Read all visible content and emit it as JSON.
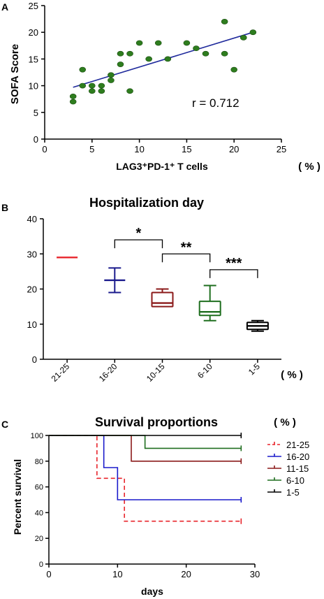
{
  "chart_data": [
    {
      "panel_label": "A",
      "type": "scatter",
      "title": "",
      "xlabel": "LAG3⁺PD-1⁺  T cells",
      "xunit": "( % )",
      "ylabel": "SOFA Score",
      "xlim": [
        0,
        25
      ],
      "ylim": [
        0,
        25
      ],
      "xticks": [
        0,
        5,
        10,
        15,
        20,
        25
      ],
      "yticks": [
        0,
        5,
        10,
        15,
        20,
        25
      ],
      "annotation": "r = 0.712",
      "colors": {
        "points": "#2e7d1e",
        "trend": "#1f2a9c"
      },
      "trend_line": {
        "x": [
          3,
          22
        ],
        "y": [
          9.7,
          20
        ]
      },
      "points": [
        {
          "x": 3,
          "y": 7
        },
        {
          "x": 3,
          "y": 8
        },
        {
          "x": 4,
          "y": 10
        },
        {
          "x": 4,
          "y": 13
        },
        {
          "x": 5,
          "y": 9
        },
        {
          "x": 5,
          "y": 10
        },
        {
          "x": 6,
          "y": 9
        },
        {
          "x": 6,
          "y": 10
        },
        {
          "x": 7,
          "y": 11
        },
        {
          "x": 7,
          "y": 12
        },
        {
          "x": 8,
          "y": 14
        },
        {
          "x": 8,
          "y": 16
        },
        {
          "x": 9,
          "y": 9
        },
        {
          "x": 9,
          "y": 16
        },
        {
          "x": 10,
          "y": 18
        },
        {
          "x": 11,
          "y": 15
        },
        {
          "x": 12,
          "y": 18
        },
        {
          "x": 13,
          "y": 15
        },
        {
          "x": 15,
          "y": 18
        },
        {
          "x": 16,
          "y": 17
        },
        {
          "x": 17,
          "y": 16
        },
        {
          "x": 19,
          "y": 16
        },
        {
          "x": 19,
          "y": 22
        },
        {
          "x": 20,
          "y": 13
        },
        {
          "x": 21,
          "y": 19
        },
        {
          "x": 22,
          "y": 20
        }
      ]
    },
    {
      "panel_label": "B",
      "type": "box",
      "title": "Hospitalization day",
      "xunit": "( % )",
      "ylim": [
        0,
        40
      ],
      "yticks": [
        0,
        10,
        20,
        30,
        40
      ],
      "categories": [
        "21-25",
        "16-20",
        "10-15",
        "6-10",
        "1-5"
      ],
      "colors": [
        "#e8242b",
        "#1a1a8c",
        "#8b1a1a",
        "#1f6e1f",
        "#000000"
      ],
      "boxes": [
        {
          "min": 29,
          "q1": 29,
          "median": 29,
          "q3": 29,
          "max": 29
        },
        {
          "min": 19,
          "q1": 22.5,
          "median": 22.5,
          "q3": 22.5,
          "max": 26
        },
        {
          "min": 15,
          "q1": 15,
          "median": 16,
          "q3": 19,
          "max": 20
        },
        {
          "min": 11,
          "q1": 12.5,
          "median": 13.5,
          "q3": 16.5,
          "max": 21
        },
        {
          "min": 8,
          "q1": 8.5,
          "median": 9.5,
          "q3": 10.5,
          "max": 11
        }
      ],
      "significance": [
        {
          "from": 1,
          "to": 2,
          "label": "*",
          "y": 34
        },
        {
          "from": 2,
          "to": 3,
          "label": "**",
          "y": 30
        },
        {
          "from": 3,
          "to": 4,
          "label": "***",
          "y": 25.5
        }
      ]
    },
    {
      "panel_label": "C",
      "type": "line",
      "title": "Survival proportions",
      "xlabel": "days",
      "ylabel": "Percent survival",
      "xlim": [
        0,
        30
      ],
      "ylim": [
        0,
        100
      ],
      "xticks": [
        0,
        10,
        20,
        30
      ],
      "yticks": [
        0,
        20,
        40,
        60,
        80,
        100
      ],
      "legend_title": "( % )",
      "legend_position": "right",
      "series": [
        {
          "name": "21-25",
          "color": "#e8242b",
          "dashed": true,
          "steps": [
            [
              0,
              100
            ],
            [
              7,
              100
            ],
            [
              7,
              66.7
            ],
            [
              11,
              66.7
            ],
            [
              11,
              33.3
            ],
            [
              28,
              33.3
            ]
          ]
        },
        {
          "name": "16-20",
          "color": "#1a1acc",
          "dashed": false,
          "steps": [
            [
              0,
              100
            ],
            [
              8,
              100
            ],
            [
              8,
              75
            ],
            [
              10,
              75
            ],
            [
              10,
              50
            ],
            [
              28,
              50
            ]
          ]
        },
        {
          "name": "11-15",
          "color": "#8b1a1a",
          "dashed": false,
          "steps": [
            [
              0,
              100
            ],
            [
              12,
              100
            ],
            [
              12,
              80
            ],
            [
              28,
              80
            ]
          ]
        },
        {
          "name": "6-10",
          "color": "#1f6e1f",
          "dashed": false,
          "steps": [
            [
              0,
              100
            ],
            [
              14,
              100
            ],
            [
              14,
              90
            ],
            [
              28,
              90
            ]
          ]
        },
        {
          "name": "1-5",
          "color": "#000000",
          "dashed": false,
          "steps": [
            [
              0,
              100
            ],
            [
              28,
              100
            ]
          ]
        }
      ]
    }
  ]
}
